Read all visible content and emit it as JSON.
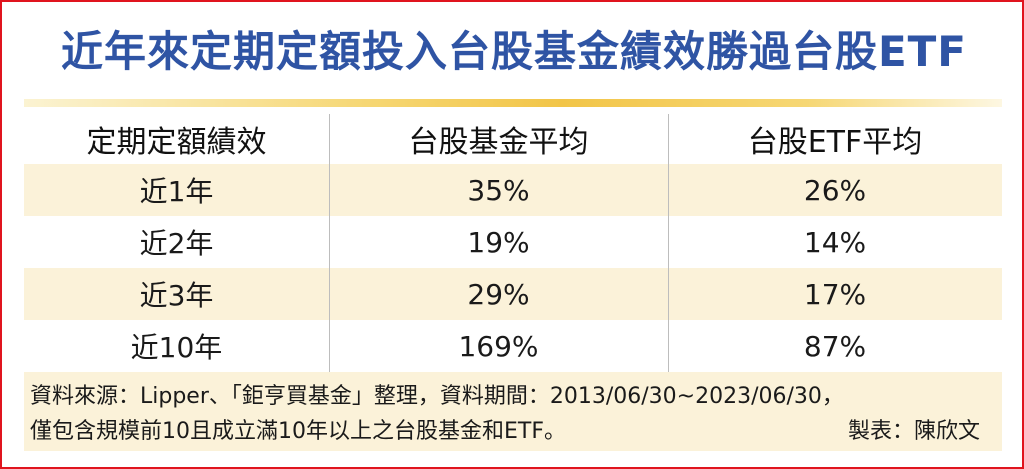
{
  "title": "近年來定期定額投入台股基金績效勝過台股ETF",
  "table": {
    "headers": [
      "定期定額績效",
      "台股基金平均",
      "台股ETF平均"
    ],
    "rows": [
      {
        "period": "近1年",
        "fund": "35%",
        "etf": "26%"
      },
      {
        "period": "近2年",
        "fund": "19%",
        "etf": "14%"
      },
      {
        "period": "近3年",
        "fund": "29%",
        "etf": "17%"
      },
      {
        "period": "近10年",
        "fund": "169%",
        "etf": "87%"
      }
    ]
  },
  "note": {
    "line1": "資料來源：Lipper、「鉅亨買基金」整理，資料期間：2013/06/30~2023/06/30，",
    "line2": "僅包含規模前10且成立滿10年以上之台股基金和ETF。",
    "credit": "製表：陳欣文"
  },
  "colors": {
    "title": "#2f54a4",
    "border": "#e0141e",
    "row_shade": "#fbf2d9",
    "rule_gold": "#f2c548"
  }
}
